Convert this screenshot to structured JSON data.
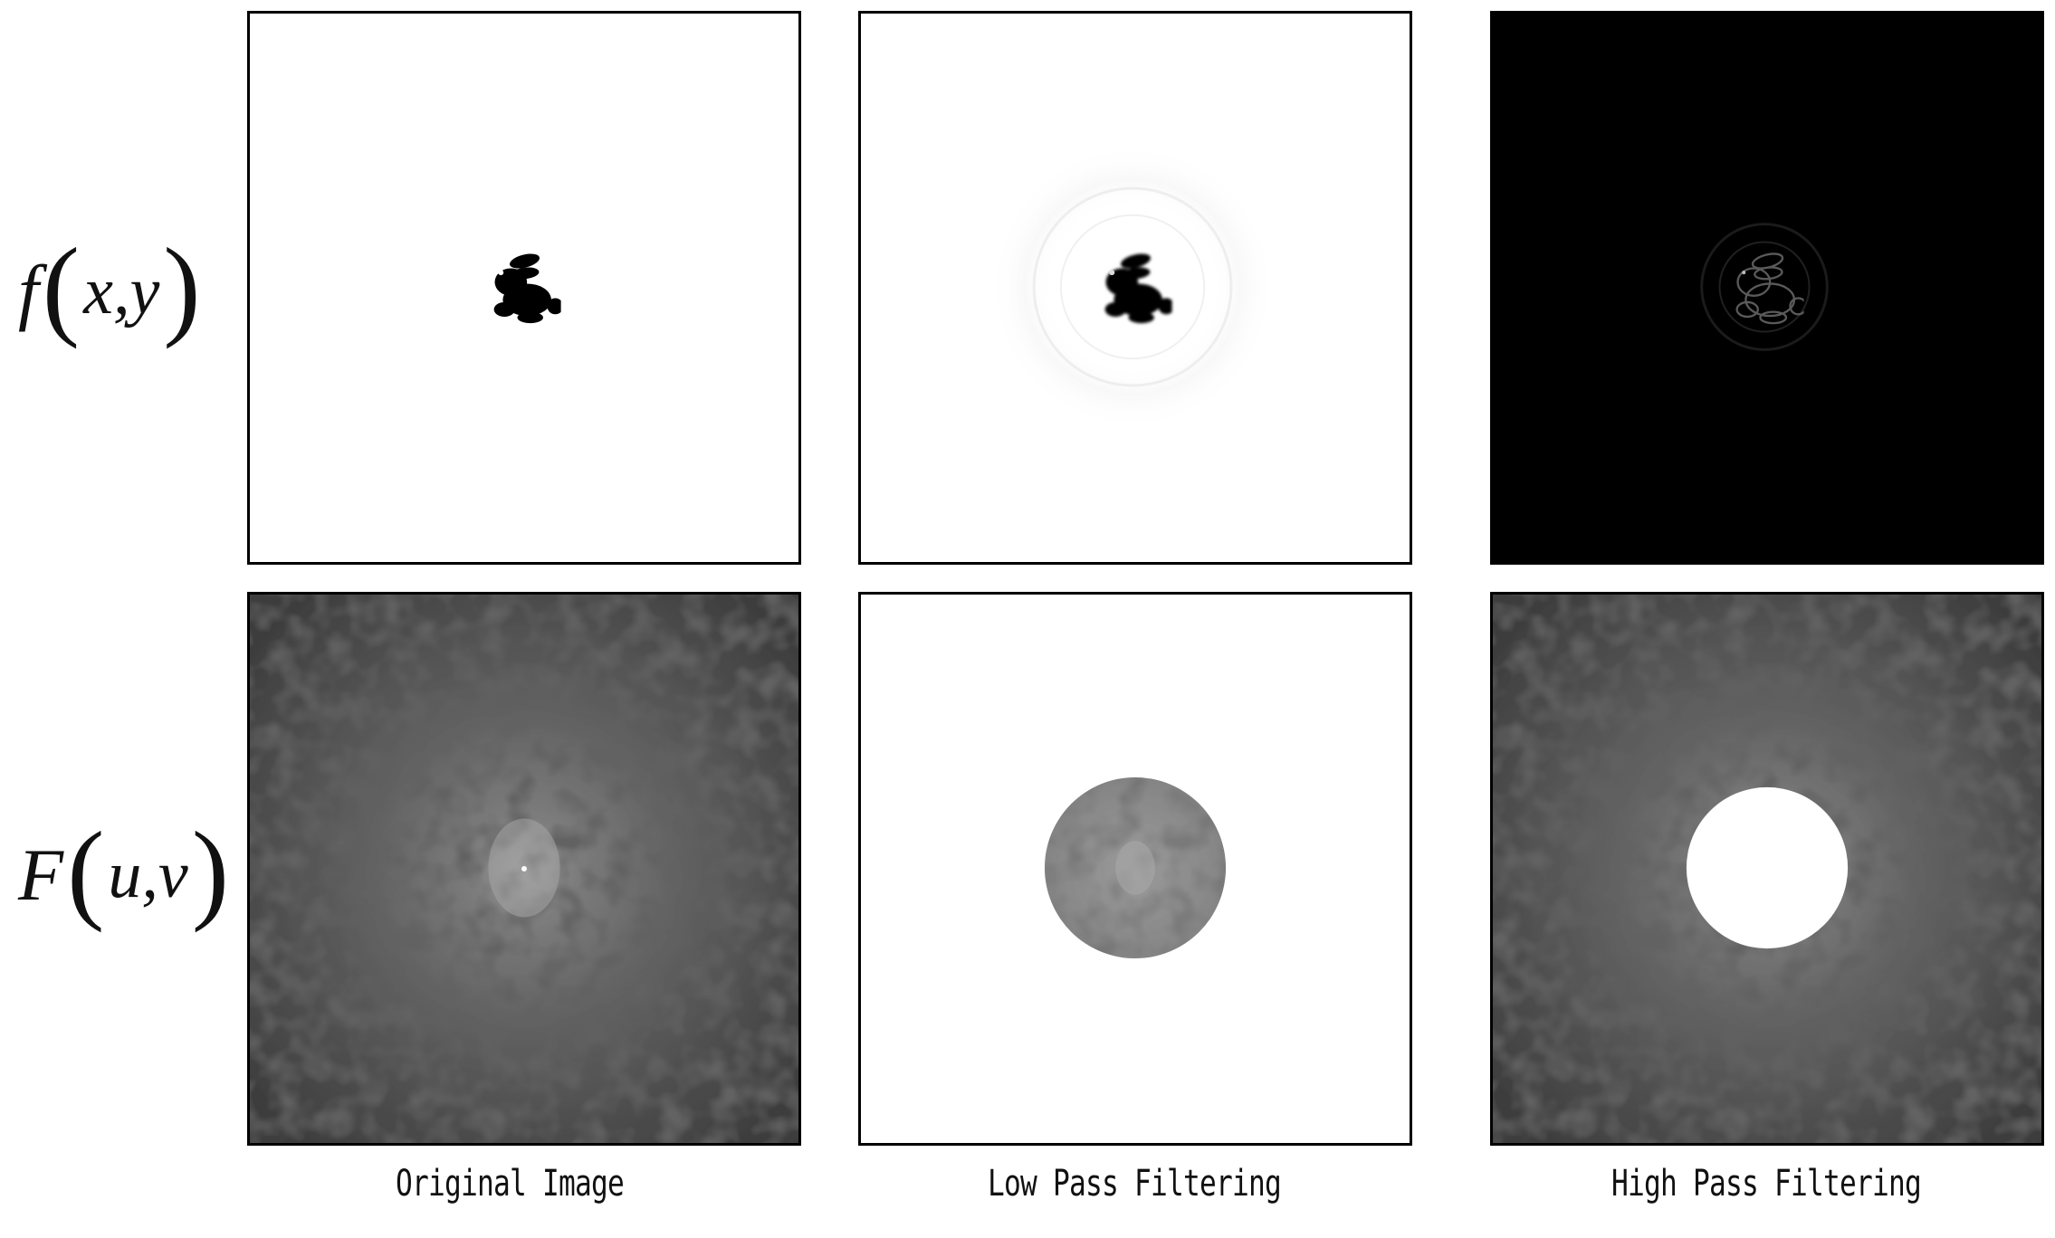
{
  "rows": {
    "spatial": {
      "fn": "f",
      "args": "x,y"
    },
    "frequency": {
      "fn": "F",
      "args": "u,v"
    }
  },
  "captions": {
    "original": "Original Image",
    "lowpass": "Low Pass Filtering",
    "highpass": "High Pass Filtering"
  }
}
